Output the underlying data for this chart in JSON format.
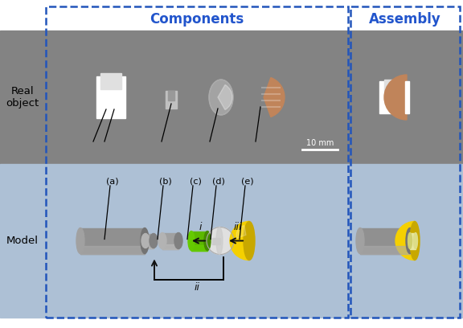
{
  "title_components": "Components",
  "title_assembly": "Assembly",
  "label_real": "Real\nobject",
  "label_model": "Model",
  "scale_text": "10 mm",
  "part_labels": [
    "(a)",
    "(b)",
    "(c)",
    "(d)",
    "(e)"
  ],
  "header_text_color": "#2255CC",
  "dashed_color": "#2255BB",
  "real_bg": "#838383",
  "model_bg": "#ADC0D5",
  "white_bg": "#FFFFFF",
  "gray_body": "#909090",
  "gray_mid": "#A0A0A0",
  "gray_light": "#BBBBBB",
  "gray_dark": "#707070",
  "green_color": "#5CB800",
  "green_dark": "#449000",
  "yellow_color": "#F5D000",
  "yellow_dark": "#C8A800",
  "disk_color": "#E0E0E0",
  "copper_color": "#C0845A",
  "arrow_color": "#111111",
  "fig_width": 5.76,
  "fig_height": 4.08,
  "dpi": 100
}
